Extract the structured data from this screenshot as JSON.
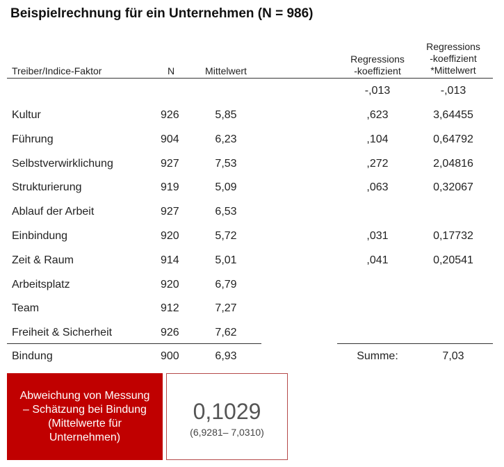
{
  "title": "Beispielrechnung für ein Unternehmen (N = 986)",
  "headers": {
    "factor": "Treiber/Indice-Faktor",
    "n": "N",
    "mean": "Mittelwert",
    "coef_line1": "Regressions",
    "coef_line2": "-koeffizient",
    "prod_line1": "Regressions",
    "prod_line2": "-koeffizient",
    "prod_line3": "*Mittelwert"
  },
  "intercept": {
    "coef": "-,013",
    "product": "-,013"
  },
  "rows": [
    {
      "factor": "Kultur",
      "n": "926",
      "mean": "5,85",
      "coef": ",623",
      "product": "3,64455"
    },
    {
      "factor": "Führung",
      "n": "904",
      "mean": "6,23",
      "coef": ",104",
      "product": "0,64792"
    },
    {
      "factor": "Selbstverwirklichung",
      "n": "927",
      "mean": "7,53",
      "coef": ",272",
      "product": "2,04816"
    },
    {
      "factor": "Strukturierung",
      "n": "919",
      "mean": "5,09",
      "coef": ",063",
      "product": "0,32067"
    },
    {
      "factor": "Ablauf der Arbeit",
      "n": "927",
      "mean": "6,53",
      "coef": "",
      "product": ""
    },
    {
      "factor": "Einbindung",
      "n": "920",
      "mean": "5,72",
      "coef": ",031",
      "product": "0,17732"
    },
    {
      "factor": "Zeit & Raum",
      "n": "914",
      "mean": "5,01",
      "coef": ",041",
      "product": "0,20541"
    },
    {
      "factor": "Arbeitsplatz",
      "n": "920",
      "mean": "6,79",
      "coef": "",
      "product": ""
    },
    {
      "factor": "Team",
      "n": "912",
      "mean": "7,27",
      "coef": "",
      "product": ""
    },
    {
      "factor": "Freiheit & Sicherheit",
      "n": "926",
      "mean": "7,62",
      "coef": "",
      "product": ""
    }
  ],
  "bindung": {
    "factor": "Bindung",
    "n": "900",
    "mean": "6,93"
  },
  "sum": {
    "label": "Summe:",
    "value": "7,03"
  },
  "deviation": {
    "label": "Abweichung von Messung – Schätzung bei Bindung (Mittelwerte für Unternehmen)",
    "value": "0,1029",
    "detail": "(6,9281– 7,0310)"
  },
  "colors": {
    "accent": "#c00000",
    "box_border": "#b54a4a"
  }
}
